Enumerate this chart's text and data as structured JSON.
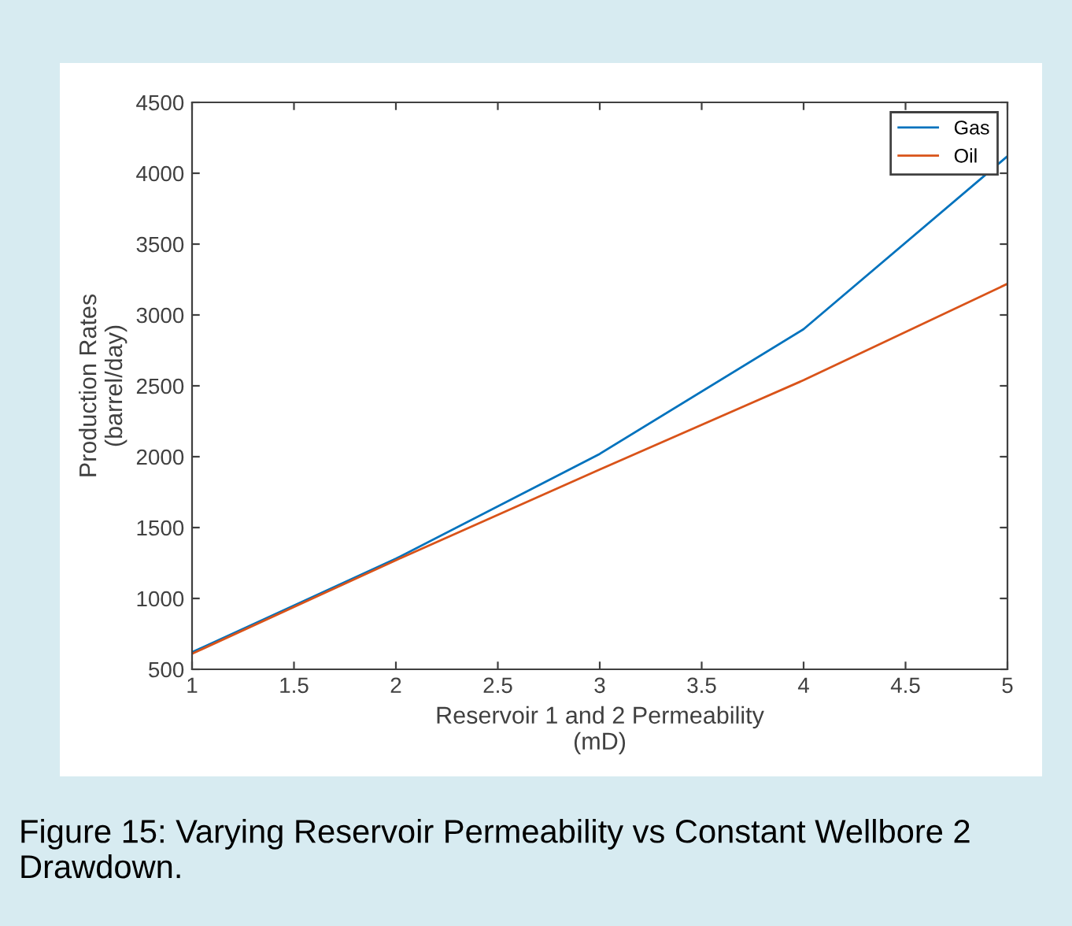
{
  "chart_data": {
    "type": "line",
    "xlabel": "Reservoir 1 and 2 Permeability\n(mD)",
    "ylabel": "Production Rates\n(barrel/day)",
    "x": [
      1,
      2,
      3,
      4,
      5
    ],
    "series": [
      {
        "name": "Gas",
        "color": "#0072bd",
        "values": [
          620,
          1280,
          2020,
          2900,
          4120
        ]
      },
      {
        "name": "Oil",
        "color": "#d95319",
        "values": [
          610,
          1270,
          1910,
          2540,
          3220
        ]
      }
    ],
    "xlim": [
      1,
      5
    ],
    "xticks": [
      1,
      1.5,
      2,
      2.5,
      3,
      3.5,
      4,
      4.5,
      5
    ],
    "ylim": [
      500,
      4500
    ],
    "yticks": [
      500,
      1000,
      1500,
      2000,
      2500,
      3000,
      3500,
      4000,
      4500
    ],
    "grid": false,
    "legend": "top right",
    "marker": "none",
    "line_style": "solid",
    "annotations": [
      "Figure 15: Varying Reservoir Permeability vs Constant Wellbore 2 Drawdown."
    ]
  }
}
